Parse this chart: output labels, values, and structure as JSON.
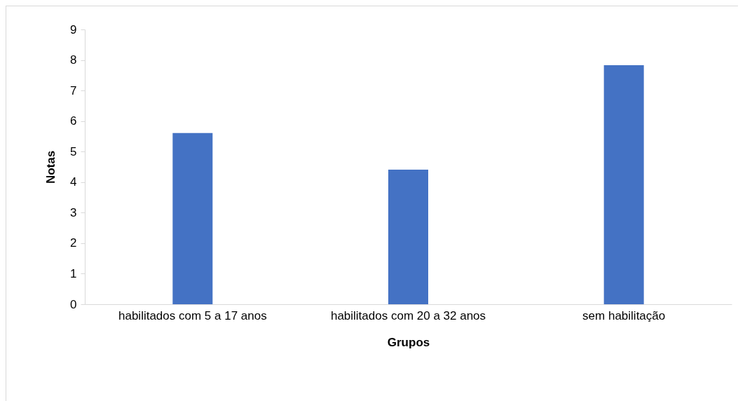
{
  "chart_data": {
    "type": "bar",
    "xlabel": "Grupos",
    "ylabel": "Notas",
    "categories": [
      "habilitados com 5 a 17 anos",
      "habilitados com 20 a 32 anos",
      "sem habilitação"
    ],
    "values": [
      5.61,
      4.41,
      7.83
    ],
    "color": "#4472c4",
    "ylim": [
      0,
      9
    ],
    "yticks": [
      0,
      1,
      2,
      3,
      4,
      5,
      6,
      7,
      8,
      9
    ],
    "grid": false
  }
}
